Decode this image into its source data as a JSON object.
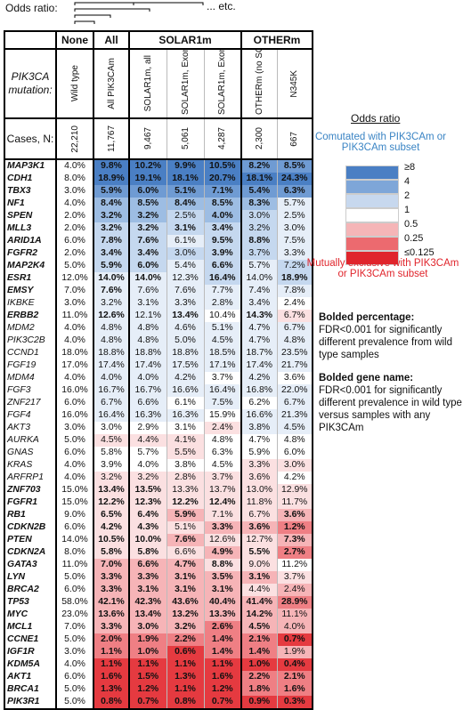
{
  "odds_ratio_label": "Odds ratio:",
  "odds_etc": "... etc.",
  "header": {
    "row_label_mutation": "PIK3CA mutation:",
    "row_label_cases": "Cases, N:",
    "groups": [
      "None",
      "All",
      "SOLAR1m",
      "OTHERm"
    ],
    "columns": [
      {
        "label": "Wild type",
        "cases": "22,210"
      },
      {
        "label": "All PIK3CAm",
        "cases": "11,767"
      },
      {
        "label": "SOLAR1m, all",
        "cases": "9,467"
      },
      {
        "label": "SOLAR1m, Exon 20",
        "cases": "5,061"
      },
      {
        "label": "SOLAR1m, Exon 9",
        "cases": "4,287"
      },
      {
        "label": "OTHERm (no SOLAR1m)",
        "cases": "2,300"
      },
      {
        "label": "N345K",
        "cases": "667"
      }
    ]
  },
  "legend": {
    "title": "Odds ratio",
    "comutated": "Comutated with PIK3CAm or PIK3CAm subset",
    "scale": [
      {
        "label": "≥8",
        "color": "#4a7fc4"
      },
      {
        "label": "4",
        "color": "#7ea6d8"
      },
      {
        "label": "2",
        "color": "#c7d8ee"
      },
      {
        "label": "1",
        "color": "#ffffff"
      },
      {
        "label": "0.5",
        "color": "#f5b5b7"
      },
      {
        "label": "0.25",
        "color": "#ec6a6f"
      },
      {
        "label": "≤0.125",
        "color": "#e0252c"
      }
    ],
    "mutually_exclusive": "Mutually exclusive with PIK3CAm or PIK3CAm subset"
  },
  "notes": {
    "bold_pct_title": "Bolded percentage:",
    "bold_pct_text": "FDR<0.001 for significantly different prevalence from wild type samples",
    "bold_gene_title": "Bolded gene name:",
    "bold_gene_text": "FDR<0.001 for significantly different prevalence in wild type versus samples with any PIK3CAm"
  },
  "rows": [
    {
      "gene": "MAP3K1",
      "gb": 1,
      "v": [
        "4.0%",
        "9.8%",
        "10.2%",
        "9.9%",
        "10.5%",
        "8.2%",
        "8.5%"
      ],
      "b": [
        0,
        1,
        1,
        1,
        1,
        1,
        1
      ],
      "c": [
        0,
        5,
        5,
        5,
        5,
        4,
        4
      ]
    },
    {
      "gene": "CDH1",
      "gb": 1,
      "v": [
        "8.0%",
        "18.9%",
        "19.1%",
        "18.1%",
        "20.7%",
        "18.1%",
        "24.3%"
      ],
      "b": [
        0,
        1,
        1,
        1,
        1,
        1,
        1
      ],
      "c": [
        0,
        5,
        5,
        5,
        5,
        5,
        5
      ]
    },
    {
      "gene": "TBX3",
      "gb": 1,
      "v": [
        "3.0%",
        "5.9%",
        "6.0%",
        "5.1%",
        "7.1%",
        "5.4%",
        "6.3%"
      ],
      "b": [
        0,
        1,
        1,
        1,
        1,
        1,
        1
      ],
      "c": [
        0,
        4,
        4,
        4,
        4,
        4,
        4
      ]
    },
    {
      "gene": "NF1",
      "gb": 1,
      "v": [
        "4.0%",
        "8.4%",
        "8.5%",
        "8.4%",
        "8.5%",
        "8.3%",
        "5.7%"
      ],
      "b": [
        0,
        1,
        1,
        1,
        1,
        1,
        0
      ],
      "c": [
        0,
        3,
        3,
        3,
        3,
        3,
        1
      ]
    },
    {
      "gene": "SPEN",
      "gb": 1,
      "v": [
        "2.0%",
        "3.2%",
        "3.2%",
        "2.5%",
        "4.0%",
        "3.0%",
        "2.5%"
      ],
      "b": [
        0,
        1,
        1,
        0,
        1,
        0,
        0
      ],
      "c": [
        0,
        3,
        3,
        2,
        3,
        2,
        1
      ]
    },
    {
      "gene": "MLL3",
      "gb": 1,
      "v": [
        "2.0%",
        "3.2%",
        "3.2%",
        "3.1%",
        "3.4%",
        "3.2%",
        "3.0%"
      ],
      "b": [
        0,
        1,
        1,
        1,
        1,
        0,
        0
      ],
      "c": [
        0,
        2,
        2,
        2,
        2,
        2,
        1
      ]
    },
    {
      "gene": "ARID1A",
      "gb": 1,
      "v": [
        "6.0%",
        "7.8%",
        "7.6%",
        "6.1%",
        "9.5%",
        "8.8%",
        "7.5%"
      ],
      "b": [
        0,
        1,
        1,
        0,
        1,
        1,
        0
      ],
      "c": [
        0,
        2,
        2,
        1,
        2,
        2,
        1
      ]
    },
    {
      "gene": "FGFR2",
      "gb": 1,
      "v": [
        "2.0%",
        "3.4%",
        "3.4%",
        "3.0%",
        "3.9%",
        "3.7%",
        "3.3%"
      ],
      "b": [
        0,
        1,
        1,
        0,
        1,
        0,
        0
      ],
      "c": [
        0,
        2,
        2,
        2,
        2,
        2,
        1
      ]
    },
    {
      "gene": "MAP2K4",
      "gb": 1,
      "v": [
        "5.0%",
        "5.9%",
        "6.0%",
        "5.4%",
        "6.6%",
        "5.7%",
        "7.2%"
      ],
      "b": [
        0,
        1,
        1,
        0,
        1,
        0,
        0
      ],
      "c": [
        0,
        2,
        2,
        1,
        2,
        1,
        2
      ]
    },
    {
      "gene": "ESR1",
      "gb": 1,
      "v": [
        "12.0%",
        "14.0%",
        "14.0%",
        "12.3%",
        "16.4%",
        "14.0%",
        "18.9%"
      ],
      "b": [
        0,
        1,
        1,
        0,
        1,
        0,
        1
      ],
      "c": [
        0,
        1,
        1,
        1,
        2,
        1,
        2
      ]
    },
    {
      "gene": "EMSY",
      "gb": 1,
      "v": [
        "7.0%",
        "7.6%",
        "7.6%",
        "7.6%",
        "7.7%",
        "7.4%",
        "7.8%"
      ],
      "b": [
        0,
        1,
        0,
        0,
        0,
        0,
        0
      ],
      "c": [
        0,
        1,
        1,
        1,
        1,
        1,
        1
      ]
    },
    {
      "gene": "IKBKE",
      "gb": 0,
      "v": [
        "3.0%",
        "3.2%",
        "3.1%",
        "3.3%",
        "2.8%",
        "3.4%",
        "2.4%"
      ],
      "b": [
        0,
        0,
        0,
        0,
        0,
        0,
        0
      ],
      "c": [
        0,
        1,
        1,
        1,
        1,
        1,
        0
      ]
    },
    {
      "gene": "ERBB2",
      "gb": 1,
      "v": [
        "11.0%",
        "12.6%",
        "12.1%",
        "13.4%",
        "10.4%",
        "14.3%",
        "6.7%"
      ],
      "b": [
        0,
        1,
        0,
        1,
        0,
        1,
        0
      ],
      "c": [
        0,
        1,
        1,
        1,
        0,
        1,
        -1
      ]
    },
    {
      "gene": "MDM2",
      "gb": 0,
      "v": [
        "4.0%",
        "4.8%",
        "4.8%",
        "4.6%",
        "5.1%",
        "4.7%",
        "6.7%"
      ],
      "b": [
        0,
        0,
        0,
        0,
        0,
        0,
        0
      ],
      "c": [
        0,
        1,
        1,
        1,
        1,
        1,
        1
      ]
    },
    {
      "gene": "PIK3C2B",
      "gb": 0,
      "v": [
        "4.0%",
        "4.8%",
        "4.8%",
        "5.0%",
        "4.5%",
        "4.7%",
        "4.8%"
      ],
      "b": [
        0,
        0,
        0,
        0,
        0,
        0,
        0
      ],
      "c": [
        0,
        1,
        1,
        1,
        1,
        1,
        1
      ]
    },
    {
      "gene": "CCND1",
      "gb": 0,
      "v": [
        "18.0%",
        "18.8%",
        "18.8%",
        "18.8%",
        "18.5%",
        "18.7%",
        "23.5%"
      ],
      "b": [
        0,
        0,
        0,
        0,
        0,
        0,
        0
      ],
      "c": [
        0,
        1,
        1,
        1,
        1,
        1,
        1
      ]
    },
    {
      "gene": "FGF19",
      "gb": 0,
      "v": [
        "17.0%",
        "17.4%",
        "17.4%",
        "17.5%",
        "17.1%",
        "17.4%",
        "21.7%"
      ],
      "b": [
        0,
        0,
        0,
        0,
        0,
        0,
        0
      ],
      "c": [
        0,
        1,
        1,
        1,
        1,
        1,
        1
      ]
    },
    {
      "gene": "MDM4",
      "gb": 0,
      "v": [
        "4.0%",
        "4.0%",
        "4.0%",
        "4.2%",
        "3.7%",
        "4.2%",
        "3.6%"
      ],
      "b": [
        0,
        0,
        0,
        0,
        0,
        0,
        0
      ],
      "c": [
        0,
        1,
        1,
        1,
        0,
        1,
        0
      ]
    },
    {
      "gene": "FGF3",
      "gb": 0,
      "v": [
        "16.0%",
        "16.7%",
        "16.7%",
        "16.6%",
        "16.4%",
        "16.8%",
        "22.0%"
      ],
      "b": [
        0,
        0,
        0,
        0,
        0,
        0,
        0
      ],
      "c": [
        0,
        1,
        1,
        1,
        1,
        1,
        1
      ]
    },
    {
      "gene": "ZNF217",
      "gb": 0,
      "v": [
        "6.0%",
        "6.7%",
        "6.6%",
        "6.1%",
        "7.5%",
        "6.2%",
        "6.7%"
      ],
      "b": [
        0,
        0,
        0,
        0,
        0,
        0,
        0
      ],
      "c": [
        0,
        1,
        1,
        0,
        1,
        0,
        1
      ]
    },
    {
      "gene": "FGF4",
      "gb": 0,
      "v": [
        "16.0%",
        "16.4%",
        "16.3%",
        "16.3%",
        "15.9%",
        "16.6%",
        "21.3%"
      ],
      "b": [
        0,
        0,
        0,
        0,
        0,
        0,
        0
      ],
      "c": [
        0,
        1,
        1,
        1,
        0,
        1,
        1
      ]
    },
    {
      "gene": "AKT3",
      "gb": 0,
      "v": [
        "3.0%",
        "3.0%",
        "2.9%",
        "3.1%",
        "2.4%",
        "3.8%",
        "4.5%"
      ],
      "b": [
        0,
        0,
        0,
        0,
        0,
        0,
        0
      ],
      "c": [
        0,
        0,
        0,
        0,
        -1,
        1,
        1
      ]
    },
    {
      "gene": "AURKA",
      "gb": 0,
      "v": [
        "5.0%",
        "4.5%",
        "4.4%",
        "4.1%",
        "4.8%",
        "4.7%",
        "4.8%"
      ],
      "b": [
        0,
        0,
        0,
        0,
        0,
        0,
        0
      ],
      "c": [
        0,
        -1,
        -1,
        -1,
        0,
        0,
        0
      ]
    },
    {
      "gene": "GNAS",
      "gb": 0,
      "v": [
        "6.0%",
        "5.8%",
        "5.7%",
        "5.5%",
        "6.3%",
        "5.9%",
        "6.0%"
      ],
      "b": [
        0,
        0,
        0,
        0,
        0,
        0,
        0
      ],
      "c": [
        0,
        0,
        0,
        -1,
        0,
        0,
        0
      ]
    },
    {
      "gene": "KRAS",
      "gb": 0,
      "v": [
        "4.0%",
        "3.9%",
        "4.0%",
        "3.8%",
        "4.5%",
        "3.3%",
        "3.0%"
      ],
      "b": [
        0,
        0,
        0,
        0,
        0,
        0,
        0
      ],
      "c": [
        0,
        0,
        0,
        0,
        0,
        -1,
        -1
      ]
    },
    {
      "gene": "ARFRP1",
      "gb": 0,
      "v": [
        "4.0%",
        "3.2%",
        "3.2%",
        "2.8%",
        "3.7%",
        "3.6%",
        "4.2%"
      ],
      "b": [
        0,
        0,
        0,
        0,
        0,
        0,
        0
      ],
      "c": [
        0,
        -1,
        -1,
        -1,
        -1,
        -1,
        0
      ]
    },
    {
      "gene": "ZNF703",
      "gb": 1,
      "v": [
        "15.0%",
        "13.4%",
        "13.5%",
        "13.3%",
        "13.7%",
        "13.0%",
        "12.9%"
      ],
      "b": [
        0,
        1,
        1,
        0,
        0,
        0,
        0
      ],
      "c": [
        0,
        -1,
        -1,
        -1,
        -1,
        -1,
        -1
      ]
    },
    {
      "gene": "FGFR1",
      "gb": 1,
      "v": [
        "15.0%",
        "12.2%",
        "12.3%",
        "12.2%",
        "12.4%",
        "11.8%",
        "11.7%"
      ],
      "b": [
        0,
        1,
        1,
        1,
        1,
        0,
        0
      ],
      "c": [
        0,
        -1,
        -1,
        -1,
        -1,
        -1,
        -1
      ]
    },
    {
      "gene": "RB1",
      "gb": 1,
      "v": [
        "9.0%",
        "6.5%",
        "6.4%",
        "5.9%",
        "7.1%",
        "6.7%",
        "3.6%"
      ],
      "b": [
        0,
        1,
        1,
        1,
        0,
        0,
        1
      ],
      "c": [
        0,
        -1,
        -1,
        -2,
        -1,
        -1,
        -2
      ]
    },
    {
      "gene": "CDKN2B",
      "gb": 1,
      "v": [
        "6.0%",
        "4.2%",
        "4.3%",
        "5.1%",
        "3.3%",
        "3.6%",
        "1.2%"
      ],
      "b": [
        0,
        1,
        1,
        0,
        1,
        1,
        1
      ],
      "c": [
        0,
        -1,
        -1,
        -1,
        -2,
        -2,
        -3
      ]
    },
    {
      "gene": "PTEN",
      "gb": 1,
      "v": [
        "14.0%",
        "10.5%",
        "10.0%",
        "7.6%",
        "12.6%",
        "12.7%",
        "7.3%"
      ],
      "b": [
        0,
        1,
        1,
        1,
        0,
        0,
        1
      ],
      "c": [
        0,
        -1,
        -1,
        -2,
        -1,
        -1,
        -2
      ]
    },
    {
      "gene": "CDKN2A",
      "gb": 1,
      "v": [
        "8.0%",
        "5.8%",
        "5.8%",
        "6.6%",
        "4.9%",
        "5.5%",
        "2.7%"
      ],
      "b": [
        0,
        1,
        1,
        0,
        1,
        1,
        1
      ],
      "c": [
        0,
        -1,
        -1,
        -1,
        -2,
        -1,
        -3
      ]
    },
    {
      "gene": "GATA3",
      "gb": 1,
      "v": [
        "11.0%",
        "7.0%",
        "6.6%",
        "4.7%",
        "8.8%",
        "9.0%",
        "11.2%"
      ],
      "b": [
        0,
        1,
        1,
        1,
        1,
        0,
        0
      ],
      "c": [
        0,
        -2,
        -2,
        -2,
        -1,
        -1,
        0
      ]
    },
    {
      "gene": "LYN",
      "gb": 1,
      "v": [
        "5.0%",
        "3.3%",
        "3.3%",
        "3.1%",
        "3.5%",
        "3.1%",
        "3.7%"
      ],
      "b": [
        0,
        1,
        1,
        1,
        1,
        1,
        0
      ],
      "c": [
        0,
        -2,
        -2,
        -2,
        -2,
        -2,
        -1
      ]
    },
    {
      "gene": "BRCA2",
      "gb": 1,
      "v": [
        "6.0%",
        "3.3%",
        "3.1%",
        "3.1%",
        "3.1%",
        "4.4%",
        "2.4%"
      ],
      "b": [
        0,
        1,
        1,
        1,
        1,
        0,
        0
      ],
      "c": [
        0,
        -2,
        -2,
        -2,
        -2,
        -1,
        -2
      ]
    },
    {
      "gene": "TP53",
      "gb": 1,
      "v": [
        "58.0%",
        "42.1%",
        "42.3%",
        "43.6%",
        "40.4%",
        "41.4%",
        "28.9%"
      ],
      "b": [
        0,
        1,
        1,
        1,
        1,
        1,
        1
      ],
      "c": [
        0,
        -2,
        -2,
        -2,
        -2,
        -2,
        -3
      ]
    },
    {
      "gene": "MYC",
      "gb": 1,
      "v": [
        "23.0%",
        "13.6%",
        "13.4%",
        "13.2%",
        "13.3%",
        "14.2%",
        "11.1%"
      ],
      "b": [
        0,
        1,
        1,
        1,
        1,
        1,
        0
      ],
      "c": [
        0,
        -2,
        -2,
        -2,
        -2,
        -2,
        -2
      ]
    },
    {
      "gene": "MCL1",
      "gb": 1,
      "v": [
        "7.0%",
        "3.3%",
        "3.0%",
        "3.2%",
        "2.6%",
        "4.5%",
        "4.0%"
      ],
      "b": [
        0,
        1,
        1,
        1,
        1,
        1,
        0
      ],
      "c": [
        0,
        -2,
        -2,
        -2,
        -3,
        -2,
        -2
      ]
    },
    {
      "gene": "CCNE1",
      "gb": 1,
      "v": [
        "5.0%",
        "2.0%",
        "1.9%",
        "2.2%",
        "1.4%",
        "2.1%",
        "0.7%"
      ],
      "b": [
        0,
        1,
        1,
        1,
        1,
        1,
        1
      ],
      "c": [
        0,
        -3,
        -3,
        -3,
        -3,
        -3,
        -4
      ]
    },
    {
      "gene": "IGF1R",
      "gb": 1,
      "v": [
        "3.0%",
        "1.1%",
        "1.0%",
        "0.6%",
        "1.4%",
        "1.4%",
        "1.9%"
      ],
      "b": [
        0,
        1,
        1,
        1,
        1,
        1,
        0
      ],
      "c": [
        0,
        -3,
        -3,
        -4,
        -3,
        -3,
        -2
      ]
    },
    {
      "gene": "KDM5A",
      "gb": 1,
      "v": [
        "4.0%",
        "1.1%",
        "1.1%",
        "1.1%",
        "1.1%",
        "1.0%",
        "0.4%"
      ],
      "b": [
        0,
        1,
        1,
        1,
        1,
        1,
        1
      ],
      "c": [
        0,
        -4,
        -4,
        -4,
        -4,
        -4,
        -4
      ]
    },
    {
      "gene": "AKT1",
      "gb": 1,
      "v": [
        "6.0%",
        "1.6%",
        "1.5%",
        "1.3%",
        "1.6%",
        "2.2%",
        "2.1%"
      ],
      "b": [
        0,
        1,
        1,
        1,
        1,
        1,
        1
      ],
      "c": [
        0,
        -4,
        -4,
        -4,
        -4,
        -3,
        -3
      ]
    },
    {
      "gene": "BRCA1",
      "gb": 1,
      "v": [
        "5.0%",
        "1.3%",
        "1.2%",
        "1.1%",
        "1.2%",
        "1.8%",
        "1.6%"
      ],
      "b": [
        0,
        1,
        1,
        1,
        1,
        1,
        1
      ],
      "c": [
        0,
        -4,
        -4,
        -4,
        -4,
        -3,
        -3
      ]
    },
    {
      "gene": "PIK3R1",
      "gb": 1,
      "v": [
        "5.0%",
        "0.8%",
        "0.7%",
        "0.8%",
        "0.7%",
        "0.9%",
        "0.3%"
      ],
      "b": [
        0,
        1,
        1,
        1,
        1,
        1,
        1
      ],
      "c": [
        0,
        -4,
        -4,
        -4,
        -4,
        -4,
        -4
      ]
    }
  ]
}
